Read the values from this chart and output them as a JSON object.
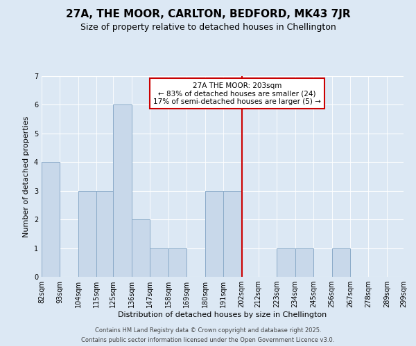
{
  "title": "27A, THE MOOR, CARLTON, BEDFORD, MK43 7JR",
  "subtitle": "Size of property relative to detached houses in Chellington",
  "xlabel": "Distribution of detached houses by size in Chellington",
  "ylabel": "Number of detached properties",
  "bin_edges": [
    82,
    93,
    104,
    115,
    125,
    136,
    147,
    158,
    169,
    180,
    191,
    202,
    212,
    223,
    234,
    245,
    256,
    267,
    278,
    289,
    299
  ],
  "bin_labels": [
    "82sqm",
    "93sqm",
    "104sqm",
    "115sqm",
    "125sqm",
    "136sqm",
    "147sqm",
    "158sqm",
    "169sqm",
    "180sqm",
    "191sqm",
    "202sqm",
    "212sqm",
    "223sqm",
    "234sqm",
    "245sqm",
    "256sqm",
    "267sqm",
    "278sqm",
    "289sqm",
    "299sqm"
  ],
  "counts": [
    4,
    0,
    3,
    3,
    6,
    2,
    1,
    1,
    0,
    3,
    3,
    0,
    0,
    1,
    1,
    0,
    1,
    0,
    0,
    0
  ],
  "bar_color": "#c8d8ea",
  "bar_edgecolor": "#8aaac8",
  "ref_line_x": 202,
  "ref_line_color": "#cc0000",
  "ylim": [
    0,
    7
  ],
  "yticks": [
    0,
    1,
    2,
    3,
    4,
    5,
    6,
    7
  ],
  "annotation_title": "27A THE MOOR: 203sqm",
  "annotation_line1": "← 83% of detached houses are smaller (24)",
  "annotation_line2": "17% of semi-detached houses are larger (5) →",
  "annotation_box_color": "#ffffff",
  "annotation_box_edgecolor": "#cc0000",
  "background_color": "#dce8f4",
  "grid_color": "#ffffff",
  "footer1": "Contains HM Land Registry data © Crown copyright and database right 2025.",
  "footer2": "Contains public sector information licensed under the Open Government Licence v3.0.",
  "title_fontsize": 11,
  "subtitle_fontsize": 9,
  "axis_label_fontsize": 8,
  "tick_fontsize": 7,
  "annotation_fontsize": 7.5
}
